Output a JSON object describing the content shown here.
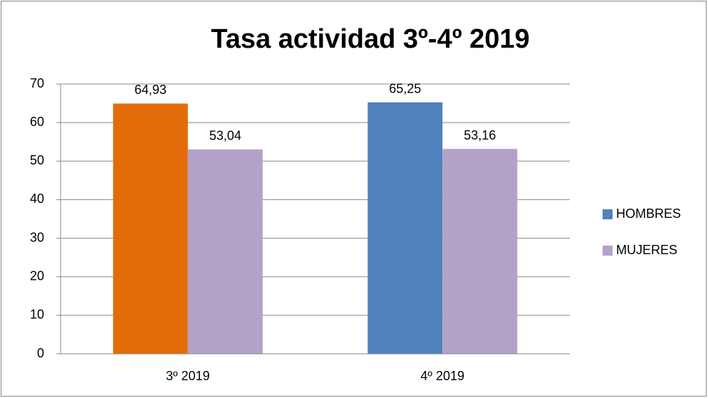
{
  "chart_data": {
    "type": "bar",
    "title": "Tasa actividad 3º-4º 2019",
    "categories": [
      "3º 2019",
      "4º 2019"
    ],
    "series": [
      {
        "name": "HOMBRES",
        "color": "#4f81bd",
        "colors": [
          "#e46c0a",
          "#4f81bd"
        ],
        "values": [
          64.93,
          65.25
        ],
        "value_labels": [
          "64,93",
          "65,25"
        ]
      },
      {
        "name": "MUJERES",
        "color": "#b3a2c7",
        "values": [
          53.04,
          53.16
        ],
        "value_labels": [
          "53,04",
          "53,16"
        ]
      }
    ],
    "ylim": [
      0,
      70
    ],
    "yticks": [
      0,
      10,
      20,
      30,
      40,
      50,
      60,
      70
    ],
    "grid": true,
    "legend": "right"
  }
}
